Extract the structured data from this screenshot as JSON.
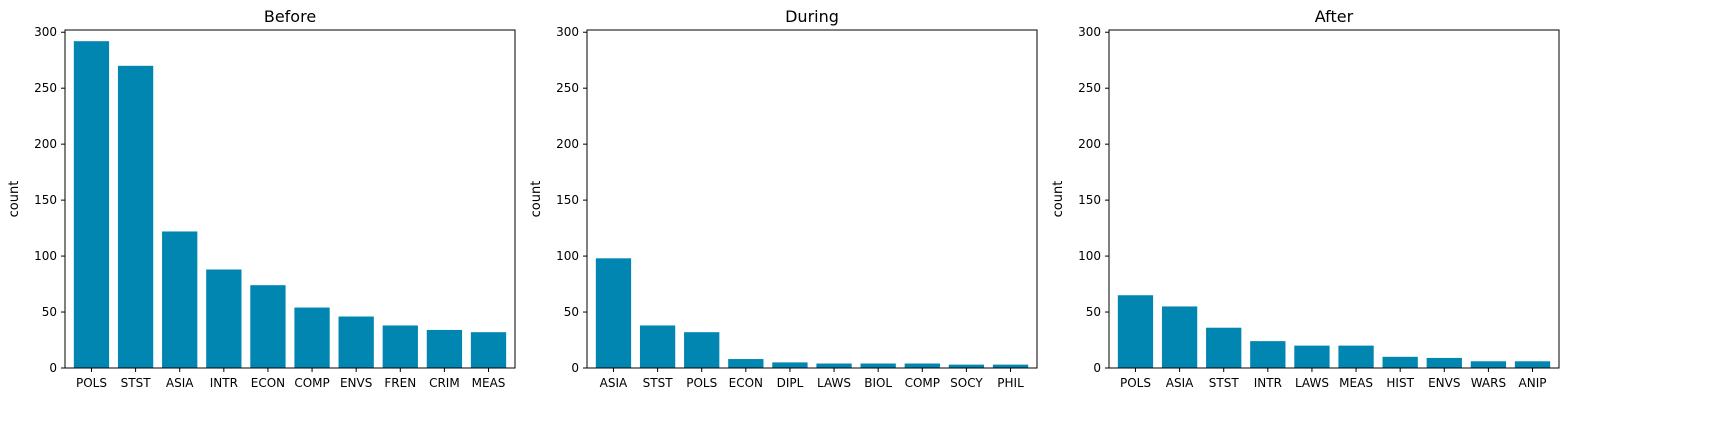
{
  "chart_data": [
    {
      "type": "bar",
      "title": "Before",
      "xlabel": "",
      "ylabel": "count",
      "ylim": [
        0,
        302
      ],
      "yticks": [
        0,
        50,
        100,
        150,
        200,
        250,
        300
      ],
      "grid": false,
      "color": "#0086b0",
      "categories": [
        "POLS",
        "STST",
        "ASIA",
        "INTR",
        "ECON",
        "COMP",
        "ENVS",
        "FREN",
        "CRIM",
        "MEAS"
      ],
      "values": [
        292,
        270,
        122,
        88,
        74,
        54,
        46,
        38,
        34,
        32
      ]
    },
    {
      "type": "bar",
      "title": "During",
      "xlabel": "",
      "ylabel": "count",
      "ylim": [
        0,
        302
      ],
      "yticks": [
        0,
        50,
        100,
        150,
        200,
        250,
        300
      ],
      "grid": false,
      "color": "#0086b0",
      "categories": [
        "ASIA",
        "STST",
        "POLS",
        "ECON",
        "DIPL",
        "LAWS",
        "BIOL",
        "COMP",
        "SOCY",
        "PHIL"
      ],
      "values": [
        98,
        38,
        32,
        8,
        5,
        4,
        4,
        4,
        3,
        3
      ]
    },
    {
      "type": "bar",
      "title": "After",
      "xlabel": "",
      "ylabel": "count",
      "ylim": [
        0,
        302
      ],
      "yticks": [
        0,
        50,
        100,
        150,
        200,
        250,
        300
      ],
      "grid": false,
      "color": "#0086b0",
      "categories": [
        "POLS",
        "ASIA",
        "STST",
        "INTR",
        "LAWS",
        "MEAS",
        "HIST",
        "ENVS",
        "WARS",
        "ANIP"
      ],
      "values": [
        65,
        55,
        36,
        24,
        20,
        20,
        10,
        9,
        6,
        6
      ]
    }
  ]
}
